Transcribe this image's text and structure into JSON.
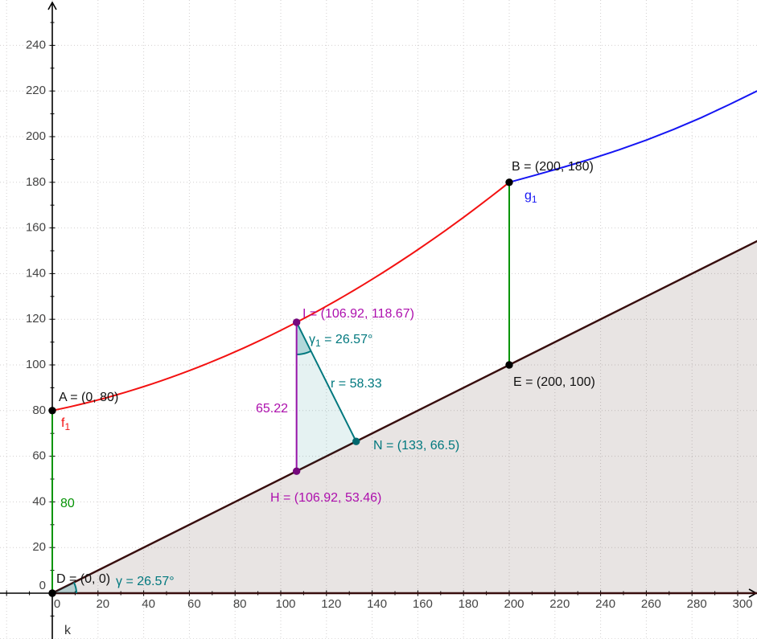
{
  "chart_data": {
    "type": "line",
    "title": "",
    "grid": true,
    "x_ticks": [
      0,
      20,
      40,
      60,
      80,
      100,
      120,
      140,
      160,
      180,
      200,
      220,
      240,
      260,
      280,
      300
    ],
    "y_ticks": [
      0,
      20,
      40,
      60,
      80,
      100,
      120,
      140,
      160,
      180,
      200,
      220,
      240
    ],
    "minor_tick_step": 10,
    "x_range_shown": [
      -23,
      308.5
    ],
    "y_range_shown": [
      -20,
      260
    ],
    "curves": [
      {
        "id": "f1",
        "label_pre": "f",
        "label_sub": "1",
        "color": "#f31111",
        "points": [
          [
            0,
            80
          ],
          [
            106.92,
            118.67
          ],
          [
            200,
            180
          ]
        ],
        "shape": "convex increasing curve through A, I, B"
      },
      {
        "id": "g1",
        "label_pre": "g",
        "label_sub": "1",
        "color": "#1515f3",
        "points": [
          [
            200,
            180
          ],
          [
            212,
            183.3
          ],
          [
            224,
            186.7
          ],
          [
            236,
            190.3
          ],
          [
            248,
            194.2
          ],
          [
            260,
            198.5
          ],
          [
            272,
            203.2
          ],
          [
            284,
            208.3
          ],
          [
            296,
            213.9
          ],
          [
            308.5,
            220
          ]
        ],
        "shape": "convex increasing curve continuing from B to right edge"
      },
      {
        "id": "k",
        "label": "k",
        "color": "#380e0e",
        "slope": 0.5,
        "points": [
          [
            0,
            0
          ],
          [
            308.5,
            154.25
          ]
        ],
        "region_below_filled": true,
        "region_fill_color": "rgba(80,48,38,0.13)"
      }
    ],
    "points": [
      {
        "id": "A",
        "label": "A = (0, 80)",
        "x": 0,
        "y": 80,
        "color": "#000000"
      },
      {
        "id": "B",
        "label": "B = (200, 180)",
        "x": 200,
        "y": 180,
        "color": "#000000"
      },
      {
        "id": "D",
        "label": "D = (0, 0)",
        "x": 0,
        "y": 0,
        "color": "#000000"
      },
      {
        "id": "E",
        "label": "E = (200, 100)",
        "x": 200,
        "y": 100,
        "color": "#000000"
      },
      {
        "id": "I",
        "label": "I = (106.92, 118.67)",
        "x": 106.92,
        "y": 118.67,
        "color": "#75087d"
      },
      {
        "id": "H",
        "label": "H = (106.92, 53.46)",
        "x": 106.92,
        "y": 53.46,
        "color": "#75087d"
      },
      {
        "id": "N",
        "label": "N = (133, 66.5)",
        "x": 133,
        "y": 66.5,
        "color": "#00686e"
      }
    ],
    "segments": [
      {
        "id": "AD",
        "from": "A",
        "to": "D",
        "color": "#069406",
        "label": "80"
      },
      {
        "id": "BE",
        "from": "B",
        "to": "E",
        "color": "#069406",
        "label": ""
      },
      {
        "id": "IH",
        "from": "I",
        "to": "H",
        "color": "#9613a8",
        "label": "65.22"
      },
      {
        "id": "IN",
        "from": "I",
        "to": "N",
        "color": "#00787e",
        "label": "r = 58.33"
      }
    ],
    "triangle_fill": {
      "vertices": [
        "I",
        "H",
        "N"
      ],
      "color": "rgba(0,125,130,0.10)"
    },
    "angles": [
      {
        "id": "gamma",
        "at": "D",
        "label_pre": "γ",
        "label_post": " = 26.57°",
        "degrees": 26.57,
        "from_deg": 0,
        "radius": 30,
        "color": "#00787e",
        "fill": "rgba(0,125,130,0.22)"
      },
      {
        "id": "gamma1",
        "at": "I",
        "label_pre": "γ",
        "label_sub": "1",
        "label_post": " = 26.57°",
        "degrees": 26.57,
        "from_deg": -90,
        "radius": 40,
        "color": "#00787e",
        "fill": "rgba(0,125,130,0.22)"
      }
    ],
    "label_colors": {
      "black_points": "#111111",
      "purple": "#ad0fad",
      "teal": "#00787e",
      "green": "#069406",
      "red": "#f31111",
      "blue": "#1515f3",
      "line_k": "#333333"
    }
  }
}
